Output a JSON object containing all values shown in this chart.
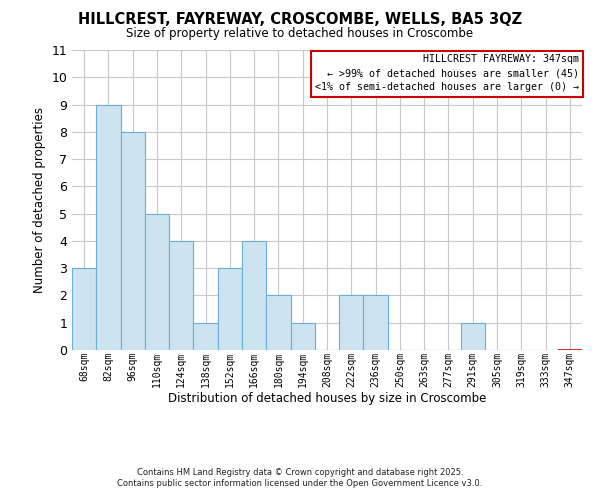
{
  "title": "HILLCREST, FAYREWAY, CROSCOMBE, WELLS, BA5 3QZ",
  "subtitle": "Size of property relative to detached houses in Croscombe",
  "xlabel": "Distribution of detached houses by size in Croscombe",
  "ylabel": "Number of detached properties",
  "bin_labels": [
    "68sqm",
    "82sqm",
    "96sqm",
    "110sqm",
    "124sqm",
    "138sqm",
    "152sqm",
    "166sqm",
    "180sqm",
    "194sqm",
    "208sqm",
    "222sqm",
    "236sqm",
    "250sqm",
    "263sqm",
    "277sqm",
    "291sqm",
    "305sqm",
    "319sqm",
    "333sqm",
    "347sqm"
  ],
  "bar_values": [
    3,
    9,
    8,
    5,
    4,
    1,
    3,
    4,
    2,
    1,
    0,
    2,
    2,
    0,
    0,
    0,
    1,
    0,
    0,
    0,
    0
  ],
  "highlight_bin": 20,
  "bar_color": "#cde4f0",
  "bar_edge_color": "#6aaed6",
  "highlight_edge_color": "#cc0000",
  "ylim": [
    0,
    11
  ],
  "yticks": [
    0,
    1,
    2,
    3,
    4,
    5,
    6,
    7,
    8,
    9,
    10,
    11
  ],
  "legend_title": "HILLCREST FAYREWAY: 347sqm",
  "legend_line1": "← >99% of detached houses are smaller (45)",
  "legend_line2": "<1% of semi-detached houses are larger (0) →",
  "legend_box_color": "#cc0000",
  "footnote1": "Contains HM Land Registry data © Crown copyright and database right 2025.",
  "footnote2": "Contains public sector information licensed under the Open Government Licence v3.0.",
  "bg_color": "#ffffff",
  "grid_color": "#c8c8c8"
}
